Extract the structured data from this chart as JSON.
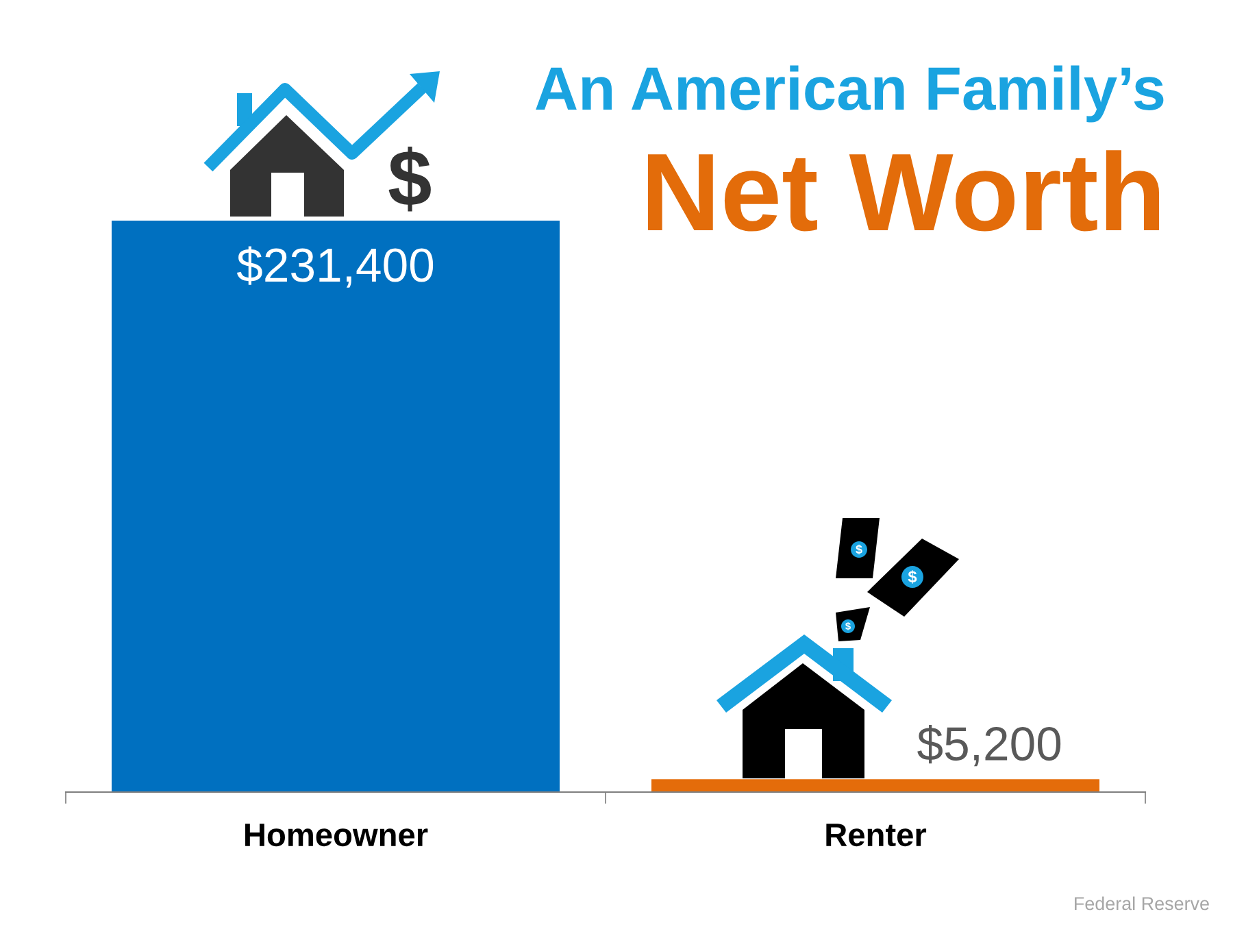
{
  "chart_data": {
    "type": "bar",
    "title": "An American Family’s",
    "subtitle": "Net Worth",
    "categories": [
      "Homeowner",
      "Renter"
    ],
    "values": [
      231400,
      5200
    ],
    "colors": [
      "#0070c0",
      "#e46c0a"
    ],
    "value_labels": [
      "$231,400",
      "$5,200"
    ],
    "annotations": [
      "Federal Reserve"
    ]
  }
}
